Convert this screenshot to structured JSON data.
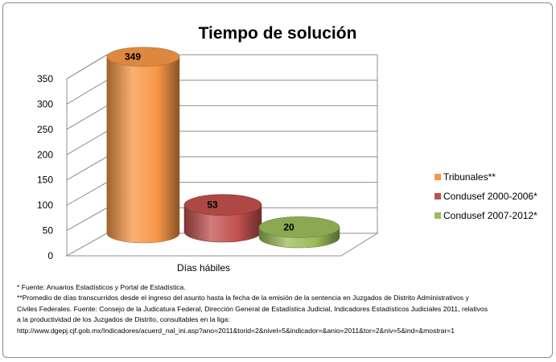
{
  "chart_data": {
    "type": "bar",
    "title": "Tiempo de solución",
    "categories": [
      "Días hábiles"
    ],
    "series": [
      {
        "name": "Tribunales**",
        "values": [
          349
        ],
        "color": "#f79646"
      },
      {
        "name": "Condusef 2000-2006*",
        "values": [
          53
        ],
        "color": "#c0504d"
      },
      {
        "name": "Condusef 2007-2012*",
        "values": [
          20
        ],
        "color": "#9bbb59"
      }
    ],
    "ylim": [
      0,
      350
    ],
    "yticks": [
      0,
      50,
      100,
      150,
      200,
      250,
      300,
      350
    ],
    "grid": true,
    "legend_position": "right",
    "style": "3d-cylinder"
  },
  "footnotes": {
    "line1": "* Fuente: Anuarios Estadísticos y Portal de Estadística.",
    "line2": "**Promedio de días transcurridos desde el ingreso del asunto hasta la fecha de la emisión de la sentencia en Juzgados de Distrito Administrativos y",
    "line3": "Civiles Federales. Fuente: Consejo de la Judicatura Federal, Dirección General de Estadística Judicial, Indicadores Estadísticos Judiciales 2011, relativos",
    "line4": "a la productividad de los Juzgados de Distrito, consultables en la liga:",
    "line5": "http://www.dgepj.cjf.gob.mx/Indicadores/acuerd_nal_ini.asp?ano=2011&torid=2&nivel=5&indicador=&anio=2011&tor=2&niv=5&ind=&mostrar=1"
  }
}
